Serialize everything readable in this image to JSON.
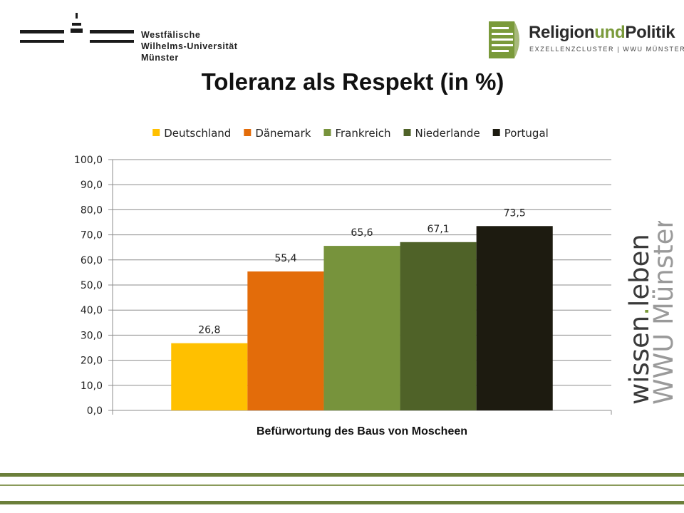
{
  "header": {
    "wwu_lines": [
      "Westfälische",
      "Wilhelms-Universität",
      "Münster"
    ],
    "rup_name_parts": [
      "Religion",
      "und",
      "Politik"
    ],
    "rup_subtitle": "EXZELLENZCLUSTER | WWU MÜNSTER"
  },
  "side_brand": {
    "line1_a": "wissen",
    "line1_b": "leben",
    "line2": "WWU Münster"
  },
  "colors": {
    "brand_green": "#7a9a3a",
    "rule_green": "#6b7f3a"
  },
  "chart_data": {
    "type": "bar",
    "title": "Toleranz als Respekt (in %)",
    "xlabel": "Befürwortung des Baus von Moscheen",
    "ylabel": "",
    "ylim": [
      0,
      100
    ],
    "yticks": [
      "0,0",
      "10,0",
      "20,0",
      "30,0",
      "40,0",
      "50,0",
      "60,0",
      "70,0",
      "80,0",
      "90,0",
      "100,0"
    ],
    "grid": true,
    "legend_position": "top",
    "categories": [
      "Befürwortung des Baus von Moscheen"
    ],
    "series": [
      {
        "name": "Deutschland",
        "values": [
          26.8
        ],
        "label": "26,8",
        "color": "#ffc000"
      },
      {
        "name": "Dänemark",
        "values": [
          55.4
        ],
        "label": "55,4",
        "color": "#e36c0a"
      },
      {
        "name": "Frankreich",
        "values": [
          65.6
        ],
        "label": "65,6",
        "color": "#77933c"
      },
      {
        "name": "Niederlande",
        "values": [
          67.1
        ],
        "label": "67,1",
        "color": "#4f6228"
      },
      {
        "name": "Portugal",
        "values": [
          73.5
        ],
        "label": "73,5",
        "color": "#1d1b10"
      }
    ]
  }
}
